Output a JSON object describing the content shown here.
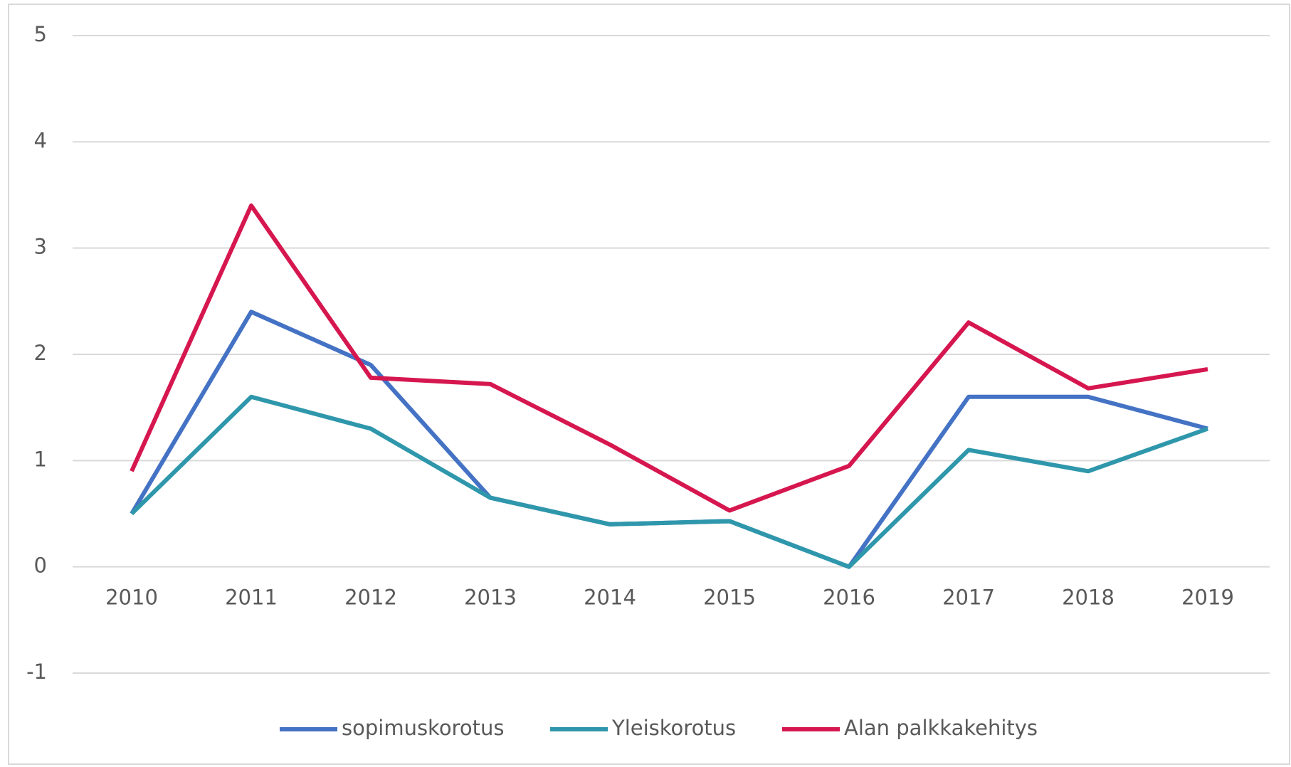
{
  "chart_data": {
    "type": "line",
    "categories": [
      "2010",
      "2011",
      "2012",
      "2013",
      "2014",
      "2015",
      "2016",
      "2017",
      "2018",
      "2019"
    ],
    "series": [
      {
        "name": "sopimuskorotus",
        "color": "#4472c4",
        "values": [
          0.5,
          2.4,
          1.9,
          0.65,
          0.4,
          0.43,
          0,
          1.6,
          1.6,
          1.3
        ]
      },
      {
        "name": "Yleiskorotus",
        "color": "#2f97ab",
        "values": [
          0.5,
          1.6,
          1.3,
          0.65,
          0.4,
          0.43,
          0,
          1.1,
          0.9,
          1.3
        ]
      },
      {
        "name": "Alan palkkakehitys",
        "color": "#d6174f",
        "values": [
          0.9,
          3.4,
          1.78,
          1.72,
          1.15,
          0.53,
          0.95,
          2.3,
          1.68,
          1.86
        ]
      }
    ],
    "ylim": [
      -1,
      5
    ],
    "yticks": [
      -1,
      0,
      1,
      2,
      3,
      4,
      5
    ],
    "grid": true,
    "legend": "bottom"
  }
}
